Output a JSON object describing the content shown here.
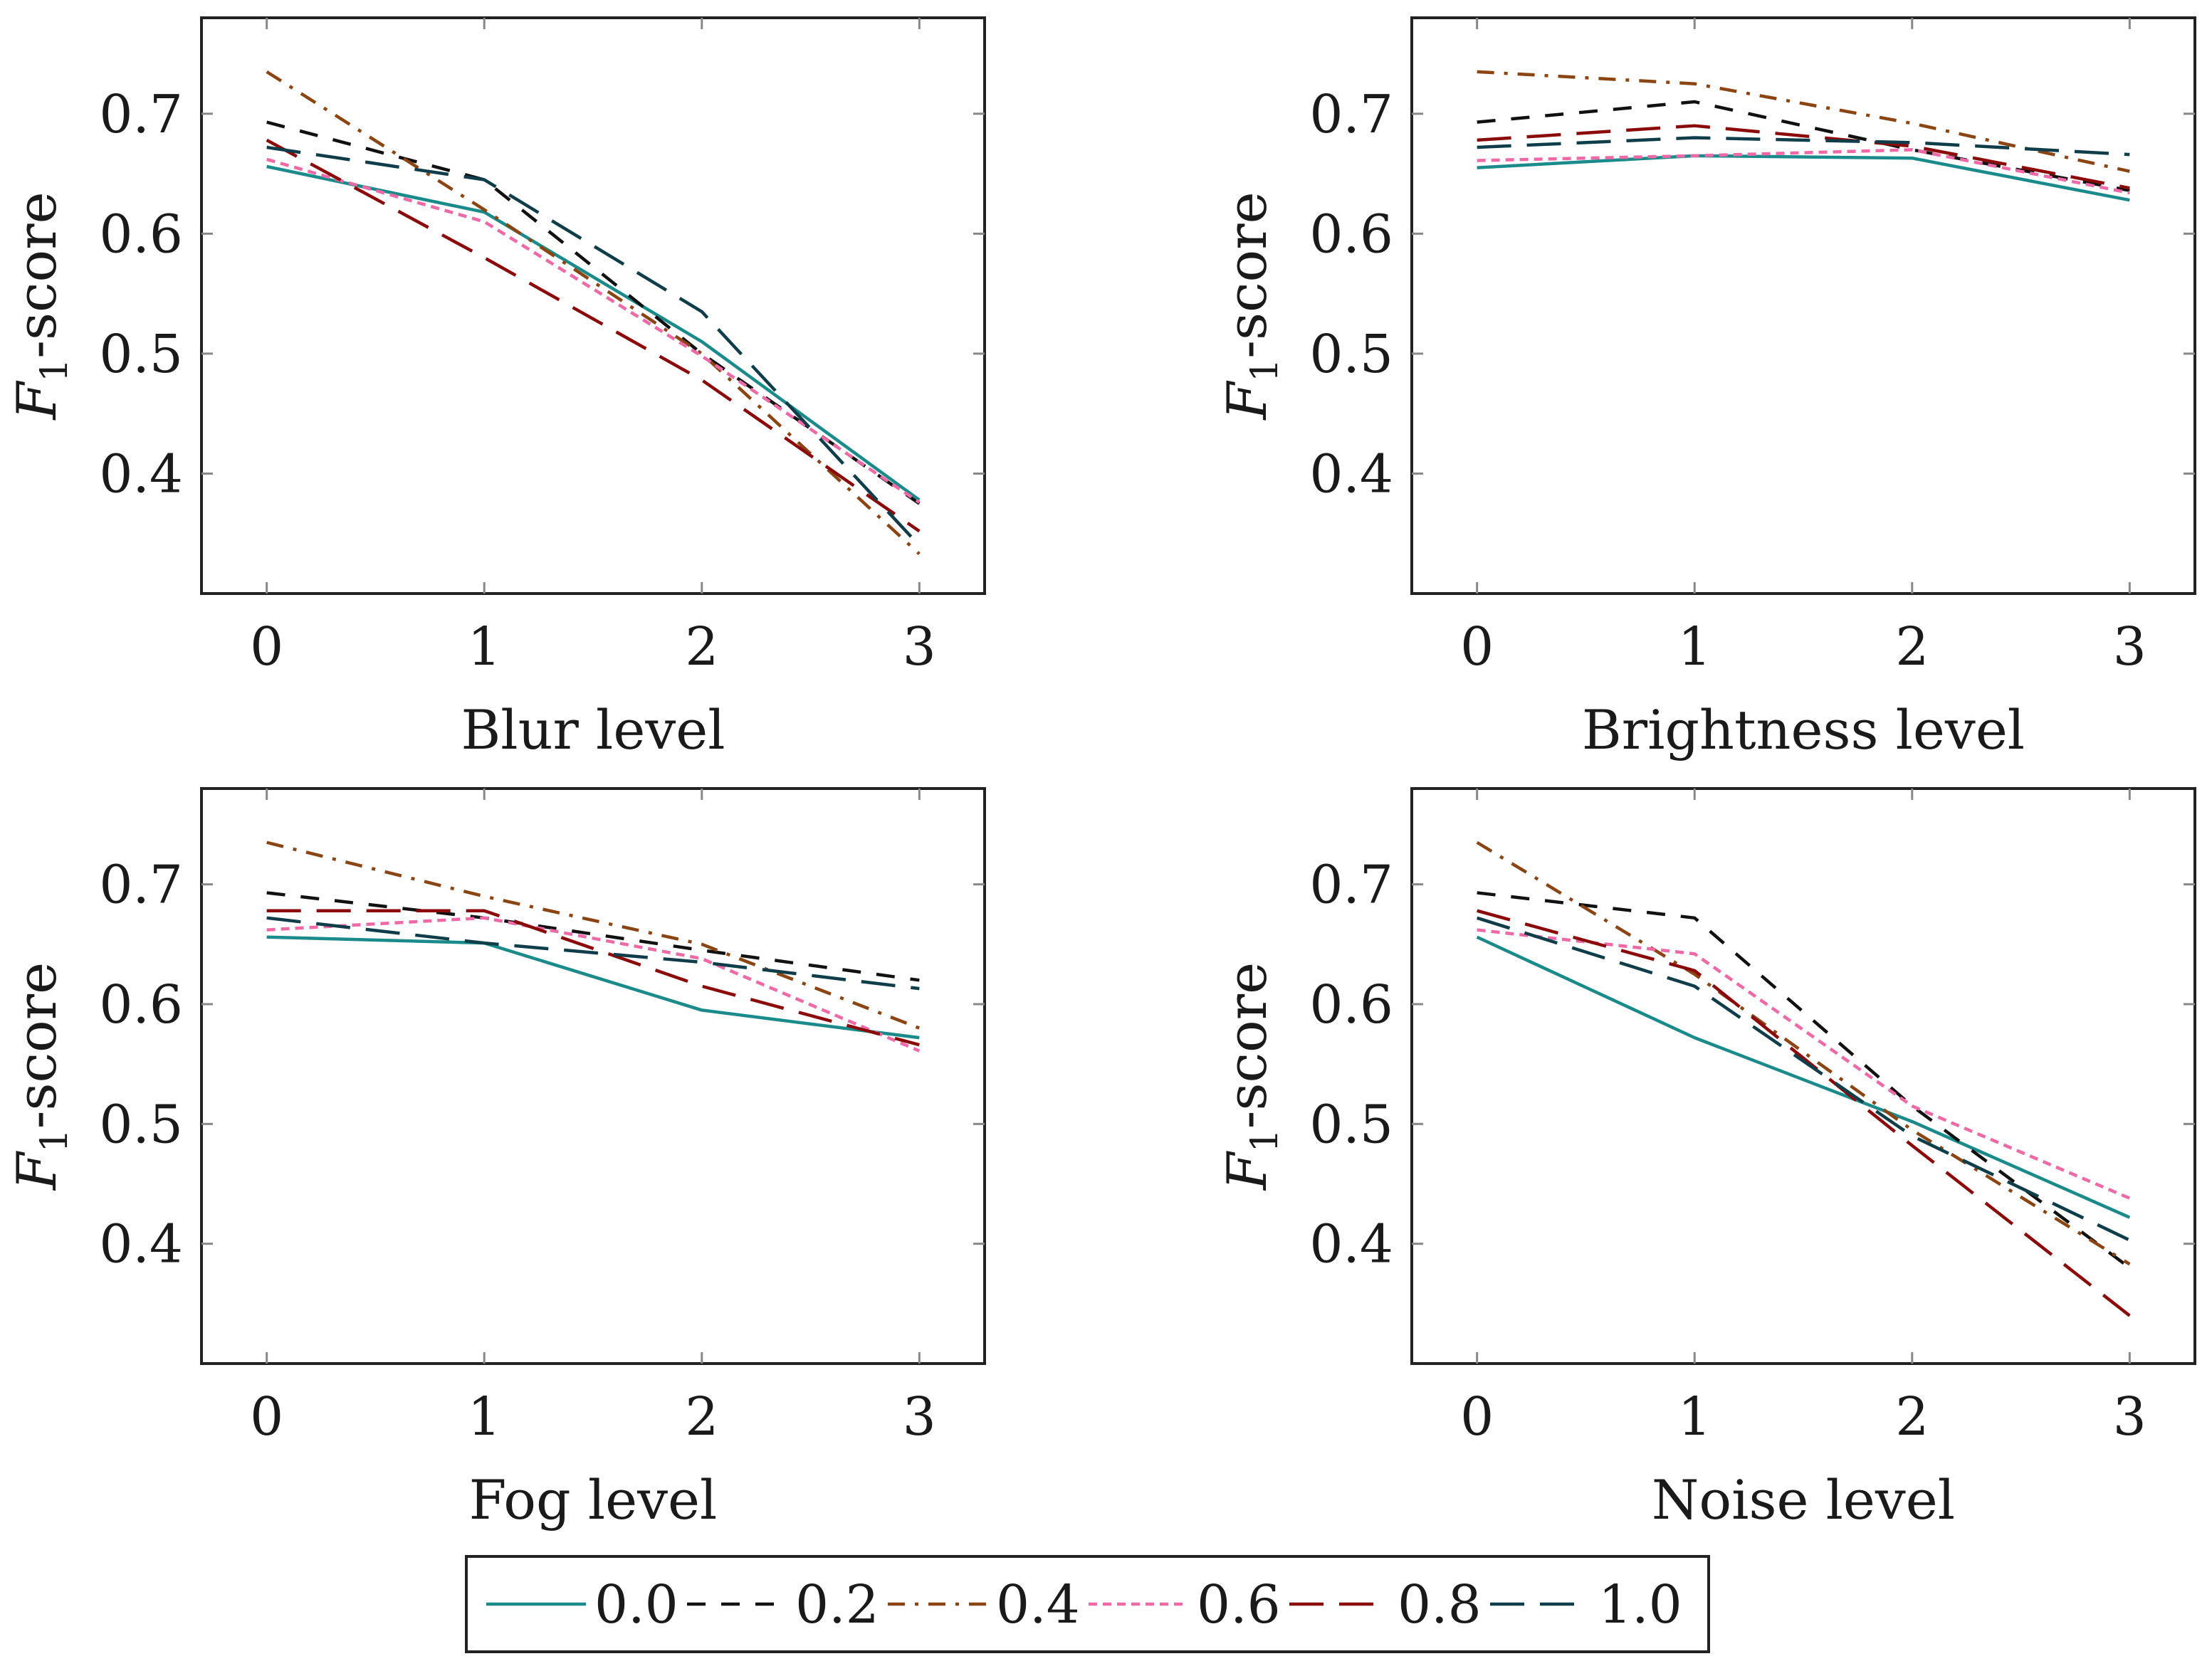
{
  "chart_data": [
    {
      "type": "line",
      "xlabel": "Blur level",
      "ylabel": "F1-score",
      "x": [
        0,
        1,
        2,
        3
      ],
      "xlim": [
        -0.3,
        3.3
      ],
      "ylim": [
        0.3,
        0.78
      ],
      "xticks": [
        "0",
        "1",
        "2",
        "3"
      ],
      "yticks": [
        "0.4",
        "0.5",
        "0.6",
        "0.7"
      ],
      "series": [
        {
          "name": "0.0",
          "values": [
            0.656,
            0.618,
            0.51,
            0.378
          ]
        },
        {
          "name": "0.2",
          "values": [
            0.693,
            0.645,
            0.5,
            0.375
          ]
        },
        {
          "name": "0.4",
          "values": [
            0.735,
            0.62,
            0.5,
            0.333
          ]
        },
        {
          "name": "0.6",
          "values": [
            0.662,
            0.61,
            0.498,
            0.376
          ]
        },
        {
          "name": "0.8",
          "values": [
            0.678,
            0.58,
            0.478,
            0.352
          ]
        },
        {
          "name": "1.0",
          "values": [
            0.672,
            0.645,
            0.535,
            0.34
          ]
        }
      ]
    },
    {
      "type": "line",
      "xlabel": "Brightness level",
      "ylabel": "F1-score",
      "x": [
        0,
        1,
        2,
        3
      ],
      "xlim": [
        -0.3,
        3.3
      ],
      "ylim": [
        0.3,
        0.78
      ],
      "xticks": [
        "0",
        "1",
        "2",
        "3"
      ],
      "yticks": [
        "0.4",
        "0.5",
        "0.6",
        "0.7"
      ],
      "series": [
        {
          "name": "0.0",
          "values": [
            0.655,
            0.665,
            0.663,
            0.628
          ]
        },
        {
          "name": "0.2",
          "values": [
            0.693,
            0.71,
            0.67,
            0.636
          ]
        },
        {
          "name": "0.4",
          "values": [
            0.735,
            0.725,
            0.692,
            0.652
          ]
        },
        {
          "name": "0.6",
          "values": [
            0.661,
            0.665,
            0.67,
            0.634
          ]
        },
        {
          "name": "0.8",
          "values": [
            0.678,
            0.69,
            0.673,
            0.638
          ]
        },
        {
          "name": "1.0",
          "values": [
            0.672,
            0.68,
            0.676,
            0.666
          ]
        }
      ]
    },
    {
      "type": "line",
      "xlabel": "Fog level",
      "ylabel": "F1-score",
      "x": [
        0,
        1,
        2,
        3
      ],
      "xlim": [
        -0.3,
        3.3
      ],
      "ylim": [
        0.3,
        0.78
      ],
      "xticks": [
        "0",
        "1",
        "2",
        "3"
      ],
      "yticks": [
        "0.4",
        "0.5",
        "0.6",
        "0.7"
      ],
      "series": [
        {
          "name": "0.0",
          "values": [
            0.656,
            0.651,
            0.595,
            0.572
          ]
        },
        {
          "name": "0.2",
          "values": [
            0.693,
            0.672,
            0.645,
            0.62
          ]
        },
        {
          "name": "0.4",
          "values": [
            0.735,
            0.69,
            0.65,
            0.58
          ]
        },
        {
          "name": "0.6",
          "values": [
            0.662,
            0.672,
            0.638,
            0.561
          ]
        },
        {
          "name": "0.8",
          "values": [
            0.678,
            0.678,
            0.615,
            0.566
          ]
        },
        {
          "name": "1.0",
          "values": [
            0.672,
            0.651,
            0.635,
            0.613
          ]
        }
      ]
    },
    {
      "type": "line",
      "xlabel": "Noise level",
      "ylabel": "F1-score",
      "x": [
        0,
        1,
        2,
        3
      ],
      "xlim": [
        -0.3,
        3.3
      ],
      "ylim": [
        0.3,
        0.78
      ],
      "xticks": [
        "0",
        "1",
        "2",
        "3"
      ],
      "yticks": [
        "0.4",
        "0.5",
        "0.6",
        "0.7"
      ],
      "series": [
        {
          "name": "0.0",
          "values": [
            0.656,
            0.572,
            0.502,
            0.422
          ]
        },
        {
          "name": "0.2",
          "values": [
            0.693,
            0.672,
            0.515,
            0.38
          ]
        },
        {
          "name": "0.4",
          "values": [
            0.735,
            0.625,
            0.495,
            0.383
          ]
        },
        {
          "name": "0.6",
          "values": [
            0.662,
            0.642,
            0.515,
            0.438
          ]
        },
        {
          "name": "0.8",
          "values": [
            0.678,
            0.628,
            0.482,
            0.34
          ]
        },
        {
          "name": "1.0",
          "values": [
            0.672,
            0.615,
            0.49,
            0.403
          ]
        }
      ]
    }
  ],
  "legend": {
    "position": "bottom-center",
    "entries": [
      "0.0",
      "0.2",
      "0.4",
      "0.6",
      "0.8",
      "1.0"
    ]
  },
  "series_styles": [
    {
      "name": "0.0",
      "color": "#1a8a8a",
      "dash": "none"
    },
    {
      "name": "0.2",
      "color": "#111111",
      "dash": "short-dash"
    },
    {
      "name": "0.4",
      "color": "#8b4513",
      "dash": "dash-dot"
    },
    {
      "name": "0.6",
      "color": "#ee6aa7",
      "dash": "dotted-dash"
    },
    {
      "name": "0.8",
      "color": "#8b0a0a",
      "dash": "long-dash"
    },
    {
      "name": "1.0",
      "color": "#0f3d4a",
      "dash": "long-dash"
    }
  ]
}
